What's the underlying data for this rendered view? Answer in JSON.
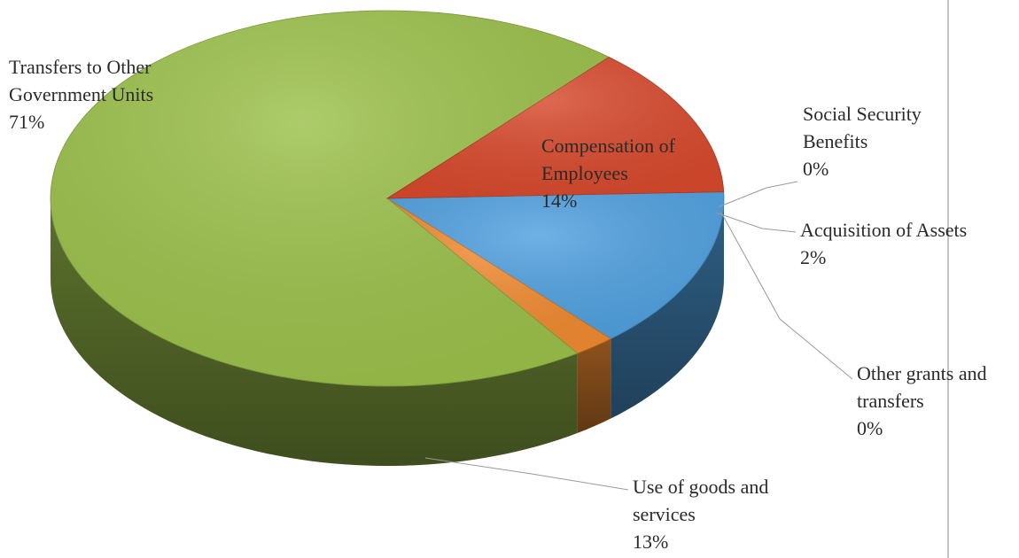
{
  "chart_data": {
    "type": "pie",
    "style": "3d",
    "title": "",
    "legend": "none",
    "slices": [
      {
        "label_lines": [
          "Compensation of",
          "Employees"
        ],
        "value": 14,
        "value_label": "14%",
        "color": "#4fa0df"
      },
      {
        "label_lines": [
          "Acquisition of Assets"
        ],
        "value": 2,
        "value_label": "2%",
        "color": "#f08a30"
      },
      {
        "label_lines": [
          "Social Security",
          "Benefits"
        ],
        "value": 0,
        "value_label": "0%",
        "color": "#9e9e9e"
      },
      {
        "label_lines": [
          "Other grants and",
          "transfers"
        ],
        "value": 0,
        "value_label": "0%",
        "color": "#4a6fb5"
      },
      {
        "label_lines": [
          "Transfers to Other",
          "Government Units"
        ],
        "value": 71,
        "value_label": "71%",
        "color": "#9bc04a"
      },
      {
        "label_lines": [
          "Use of goods and",
          "services"
        ],
        "value": 13,
        "value_label": "13%",
        "color": "#d7492c"
      }
    ]
  }
}
